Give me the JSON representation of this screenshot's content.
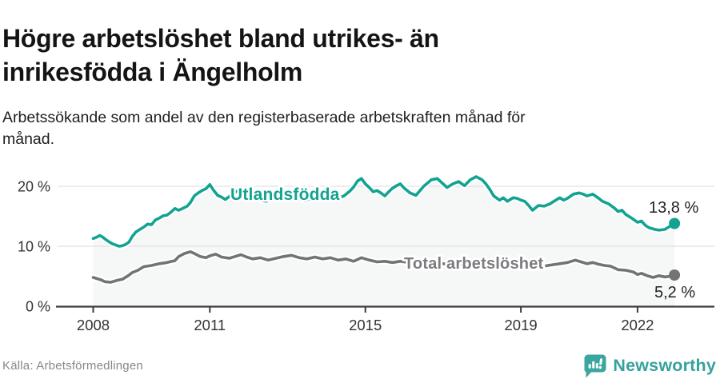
{
  "header": {
    "title_line1": "Högre arbetslöshet bland utrikes- än",
    "title_line2": "inrikesfödda i Ängelholm",
    "subtitle_line1": "Arbetssökande som andel av den registerbaserade arbetskraften månad för",
    "subtitle_line2": "månad."
  },
  "footer": {
    "source": "Källa: Arbetsförmedlingen",
    "brand_name": "Newsworthy",
    "brand_color": "#35a29b"
  },
  "chart_data": {
    "type": "line",
    "title": "Högre arbetslöshet bland utrikes- än inrikesfödda i Ängelholm",
    "subtitle": "Arbetssökande som andel av den registerbaserade arbetskraften månad för månad.",
    "unit": "%",
    "x_axis": {
      "tick_labels": [
        "2008",
        "2011",
        "2015",
        "2019",
        "2022"
      ],
      "tick_values": [
        2008,
        2011,
        2015,
        2019,
        2022
      ],
      "range": [
        2007.1,
        2024.0
      ],
      "grid": false
    },
    "y_axis": {
      "tick_labels": [
        "0 %",
        "10 %",
        "20 %"
      ],
      "tick_values": [
        0,
        10,
        20
      ],
      "range": [
        0,
        22.5
      ],
      "grid": true
    },
    "colors": {
      "grid": "#e0e1e3",
      "axis": "#3c3c40",
      "axis_text": "#333338",
      "area_fill": "#f6f7f7",
      "value_label": "#232327"
    },
    "series": [
      {
        "name": "Utlandsfödda",
        "color": "#12a391",
        "end_label": "13,8 %",
        "end_value": 13.8,
        "area_fill": true,
        "points": [
          [
            2008.0,
            11.3
          ],
          [
            2008.08,
            11.5
          ],
          [
            2008.17,
            11.8
          ],
          [
            2008.25,
            11.5
          ],
          [
            2008.33,
            11.1
          ],
          [
            2008.42,
            10.7
          ],
          [
            2008.5,
            10.4
          ],
          [
            2008.58,
            10.2
          ],
          [
            2008.67,
            10.0
          ],
          [
            2008.75,
            10.1
          ],
          [
            2008.83,
            10.3
          ],
          [
            2008.92,
            10.7
          ],
          [
            2009.0,
            11.6
          ],
          [
            2009.1,
            12.4
          ],
          [
            2009.2,
            12.8
          ],
          [
            2009.3,
            13.2
          ],
          [
            2009.4,
            13.7
          ],
          [
            2009.5,
            13.6
          ],
          [
            2009.6,
            14.4
          ],
          [
            2009.7,
            14.7
          ],
          [
            2009.8,
            15.1
          ],
          [
            2009.9,
            15.2
          ],
          [
            2010.0,
            15.7
          ],
          [
            2010.1,
            16.3
          ],
          [
            2010.2,
            16.0
          ],
          [
            2010.33,
            16.4
          ],
          [
            2010.42,
            16.7
          ],
          [
            2010.5,
            17.3
          ],
          [
            2010.6,
            18.4
          ],
          [
            2010.7,
            18.9
          ],
          [
            2010.8,
            19.3
          ],
          [
            2010.9,
            19.6
          ],
          [
            2011.0,
            20.3
          ],
          [
            2011.1,
            19.3
          ],
          [
            2011.2,
            18.5
          ],
          [
            2011.3,
            18.2
          ],
          [
            2011.4,
            17.8
          ],
          [
            2011.5,
            18.3
          ],
          [
            2011.6,
            18.8
          ],
          [
            2011.75,
            19.4
          ],
          [
            2011.9,
            18.8
          ],
          [
            2012.0,
            18.4
          ],
          [
            2012.15,
            18.0
          ],
          [
            2012.3,
            17.7
          ],
          [
            2012.45,
            17.5
          ],
          [
            2012.6,
            17.9
          ],
          [
            2012.75,
            18.3
          ],
          [
            2012.9,
            18.6
          ],
          [
            2013.0,
            18.9
          ],
          [
            2013.15,
            18.8
          ],
          [
            2013.3,
            17.9
          ],
          [
            2013.45,
            17.6
          ],
          [
            2013.6,
            18.0
          ],
          [
            2013.75,
            18.4
          ],
          [
            2013.9,
            18.2
          ],
          [
            2014.0,
            18.6
          ],
          [
            2014.15,
            18.3
          ],
          [
            2014.3,
            18.0
          ],
          [
            2014.45,
            18.4
          ],
          [
            2014.6,
            19.2
          ],
          [
            2014.7,
            19.9
          ],
          [
            2014.8,
            20.9
          ],
          [
            2014.9,
            21.3
          ],
          [
            2015.0,
            20.4
          ],
          [
            2015.1,
            19.8
          ],
          [
            2015.2,
            19.1
          ],
          [
            2015.3,
            19.3
          ],
          [
            2015.4,
            18.9
          ],
          [
            2015.5,
            18.4
          ],
          [
            2015.6,
            19.1
          ],
          [
            2015.7,
            19.7
          ],
          [
            2015.8,
            20.1
          ],
          [
            2015.9,
            20.4
          ],
          [
            2016.0,
            19.7
          ],
          [
            2016.15,
            18.9
          ],
          [
            2016.3,
            18.5
          ],
          [
            2016.5,
            20.0
          ],
          [
            2016.7,
            21.1
          ],
          [
            2016.85,
            21.3
          ],
          [
            2017.0,
            20.4
          ],
          [
            2017.1,
            19.8
          ],
          [
            2017.25,
            20.4
          ],
          [
            2017.4,
            20.8
          ],
          [
            2017.55,
            20.1
          ],
          [
            2017.7,
            21.1
          ],
          [
            2017.85,
            21.6
          ],
          [
            2018.0,
            21.1
          ],
          [
            2018.1,
            20.4
          ],
          [
            2018.2,
            19.5
          ],
          [
            2018.3,
            18.4
          ],
          [
            2018.45,
            17.7
          ],
          [
            2018.55,
            18.1
          ],
          [
            2018.65,
            17.5
          ],
          [
            2018.8,
            18.1
          ],
          [
            2018.9,
            18.0
          ],
          [
            2019.0,
            17.7
          ],
          [
            2019.1,
            17.5
          ],
          [
            2019.2,
            16.8
          ],
          [
            2019.3,
            16.0
          ],
          [
            2019.45,
            16.8
          ],
          [
            2019.6,
            16.7
          ],
          [
            2019.75,
            17.1
          ],
          [
            2019.9,
            17.7
          ],
          [
            2020.0,
            18.1
          ],
          [
            2020.1,
            17.7
          ],
          [
            2020.2,
            18.0
          ],
          [
            2020.35,
            18.7
          ],
          [
            2020.5,
            18.9
          ],
          [
            2020.6,
            18.7
          ],
          [
            2020.7,
            18.4
          ],
          [
            2020.85,
            18.7
          ],
          [
            2021.0,
            18.0
          ],
          [
            2021.1,
            17.5
          ],
          [
            2021.25,
            17.1
          ],
          [
            2021.4,
            16.4
          ],
          [
            2021.5,
            15.8
          ],
          [
            2021.6,
            16.0
          ],
          [
            2021.7,
            15.3
          ],
          [
            2021.85,
            14.7
          ],
          [
            2022.0,
            14.0
          ],
          [
            2022.1,
            14.2
          ],
          [
            2022.2,
            13.5
          ],
          [
            2022.3,
            13.1
          ],
          [
            2022.45,
            12.8
          ],
          [
            2022.55,
            12.7
          ],
          [
            2022.7,
            12.8
          ],
          [
            2022.8,
            13.2
          ],
          [
            2022.95,
            13.8
          ]
        ]
      },
      {
        "name": "Total arbetslöshet",
        "color": "#737377",
        "label_color": "#7b7b80",
        "end_label": "5,2 %",
        "end_value": 5.2,
        "area_fill": false,
        "points": [
          [
            2008.0,
            4.8
          ],
          [
            2008.1,
            4.6
          ],
          [
            2008.2,
            4.4
          ],
          [
            2008.3,
            4.1
          ],
          [
            2008.45,
            4.0
          ],
          [
            2008.6,
            4.3
          ],
          [
            2008.75,
            4.5
          ],
          [
            2008.9,
            5.1
          ],
          [
            2009.0,
            5.6
          ],
          [
            2009.15,
            6.0
          ],
          [
            2009.3,
            6.6
          ],
          [
            2009.5,
            6.8
          ],
          [
            2009.7,
            7.1
          ],
          [
            2009.9,
            7.3
          ],
          [
            2010.1,
            7.6
          ],
          [
            2010.2,
            8.3
          ],
          [
            2010.35,
            8.8
          ],
          [
            2010.5,
            9.1
          ],
          [
            2010.6,
            8.8
          ],
          [
            2010.75,
            8.3
          ],
          [
            2010.9,
            8.1
          ],
          [
            2011.0,
            8.4
          ],
          [
            2011.15,
            8.7
          ],
          [
            2011.3,
            8.2
          ],
          [
            2011.5,
            8.0
          ],
          [
            2011.65,
            8.3
          ],
          [
            2011.8,
            8.6
          ],
          [
            2011.95,
            8.2
          ],
          [
            2012.1,
            7.9
          ],
          [
            2012.3,
            8.1
          ],
          [
            2012.5,
            7.7
          ],
          [
            2012.7,
            8.0
          ],
          [
            2012.9,
            8.3
          ],
          [
            2013.1,
            8.5
          ],
          [
            2013.3,
            8.1
          ],
          [
            2013.5,
            7.9
          ],
          [
            2013.7,
            8.2
          ],
          [
            2013.9,
            7.9
          ],
          [
            2014.1,
            8.1
          ],
          [
            2014.3,
            7.7
          ],
          [
            2014.5,
            7.9
          ],
          [
            2014.7,
            7.5
          ],
          [
            2014.9,
            8.1
          ],
          [
            2015.1,
            7.7
          ],
          [
            2015.3,
            7.4
          ],
          [
            2015.5,
            7.5
          ],
          [
            2015.7,
            7.3
          ],
          [
            2015.9,
            7.5
          ],
          [
            2016.1,
            7.3
          ],
          [
            2016.3,
            7.1
          ],
          [
            2016.5,
            7.3
          ],
          [
            2016.7,
            7.1
          ],
          [
            2016.9,
            7.2
          ],
          [
            2017.1,
            7.0
          ],
          [
            2017.3,
            7.1
          ],
          [
            2017.5,
            6.9
          ],
          [
            2017.7,
            7.0
          ],
          [
            2017.9,
            6.9
          ],
          [
            2018.1,
            7.0
          ],
          [
            2018.3,
            6.8
          ],
          [
            2018.5,
            6.9
          ],
          [
            2018.7,
            6.7
          ],
          [
            2018.9,
            6.6
          ],
          [
            2019.1,
            6.5
          ],
          [
            2019.3,
            6.3
          ],
          [
            2019.5,
            6.6
          ],
          [
            2019.7,
            6.8
          ],
          [
            2019.9,
            7.0
          ],
          [
            2020.0,
            7.1
          ],
          [
            2020.2,
            7.3
          ],
          [
            2020.4,
            7.7
          ],
          [
            2020.55,
            7.4
          ],
          [
            2020.7,
            7.1
          ],
          [
            2020.85,
            7.3
          ],
          [
            2021.0,
            7.0
          ],
          [
            2021.15,
            6.8
          ],
          [
            2021.3,
            6.7
          ],
          [
            2021.5,
            6.1
          ],
          [
            2021.7,
            6.0
          ],
          [
            2021.9,
            5.7
          ],
          [
            2022.0,
            5.3
          ],
          [
            2022.1,
            5.5
          ],
          [
            2022.25,
            5.1
          ],
          [
            2022.4,
            4.8
          ],
          [
            2022.55,
            5.1
          ],
          [
            2022.7,
            4.9
          ],
          [
            2022.85,
            5.0
          ],
          [
            2022.95,
            5.2
          ]
        ]
      }
    ],
    "legend_position": "inline-labels-on-lines"
  }
}
